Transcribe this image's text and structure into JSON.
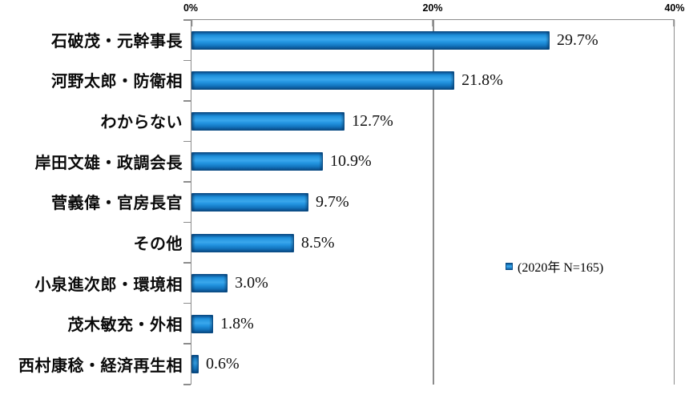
{
  "chart_data": {
    "type": "bar",
    "orientation": "horizontal",
    "title": "",
    "xlabel": "",
    "ylabel": "",
    "xlim": [
      0,
      40
    ],
    "x_ticks": [
      "0%",
      "20%",
      "40%"
    ],
    "x_tick_values": [
      0,
      20,
      40
    ],
    "grid": "vertical gridline at 20%, axis box open at bottom",
    "legend_position": "right-middle",
    "categories": [
      "石破茂・元幹事長",
      "河野太郎・防衛相",
      "わからない",
      "岸田文雄・政調会長",
      "菅義偉・官房長官",
      "その他",
      "小泉進次郎・環境相",
      "茂木敏充・外相",
      "西村康稔・経済再生相"
    ],
    "values": [
      29.7,
      21.8,
      12.7,
      10.9,
      9.7,
      8.5,
      3.0,
      1.8,
      0.6
    ],
    "value_labels": [
      "29.7%",
      "21.8%",
      "12.7%",
      "10.9%",
      "9.7%",
      "8.5%",
      "3.0%",
      "1.8%",
      "0.6%"
    ],
    "series_name": "(2020年 N=165)",
    "colors": {
      "bar_main": "#1E8ED9",
      "bar_highlight": "#3AA7EC",
      "bar_dark_edge": "#0A4C85",
      "axis_line": "#8C8C8C",
      "text": "#000000",
      "background": "#FFFFFF"
    }
  },
  "legend": {
    "label": "(2020年 N=165)"
  }
}
